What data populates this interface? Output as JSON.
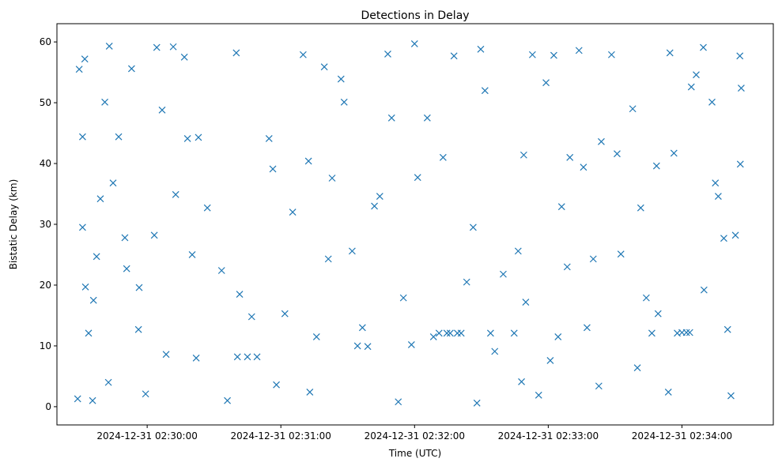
{
  "chart_data": {
    "type": "scatter",
    "title": "Detections in Delay",
    "xlabel": "Time (UTC)",
    "ylabel": "Bistatic Delay (km)",
    "x_units": "seconds after 2024-12-31 02:29:00",
    "xlim": [
      19.5,
      341
    ],
    "ylim": [
      -3,
      63
    ],
    "grid": false,
    "marker": "x",
    "color": "#1f77b4",
    "xticks": [
      {
        "value": 60,
        "label": "2024-12-31 02:30:00"
      },
      {
        "value": 120,
        "label": "2024-12-31 02:31:00"
      },
      {
        "value": 180,
        "label": "2024-12-31 02:32:00"
      },
      {
        "value": 240,
        "label": "2024-12-31 02:33:00"
      },
      {
        "value": 300,
        "label": "2024-12-31 02:34:00"
      }
    ],
    "yticks": [
      {
        "value": 0,
        "label": "0"
      },
      {
        "value": 10,
        "label": "10"
      },
      {
        "value": 20,
        "label": "20"
      },
      {
        "value": 30,
        "label": "30"
      },
      {
        "value": 40,
        "label": "40"
      },
      {
        "value": 50,
        "label": "50"
      },
      {
        "value": 60,
        "label": "60"
      }
    ],
    "points": [
      [
        28.8,
        1.3
      ],
      [
        29.5,
        55.5
      ],
      [
        32,
        57.2
      ],
      [
        31,
        44.4
      ],
      [
        31,
        29.5
      ],
      [
        32.3,
        19.7
      ],
      [
        33.7,
        12.1
      ],
      [
        35.5,
        1.0
      ],
      [
        35.9,
        17.5
      ],
      [
        37.3,
        24.7
      ],
      [
        39,
        34.2
      ],
      [
        41,
        50.1
      ],
      [
        42.6,
        4.0
      ],
      [
        43,
        59.3
      ],
      [
        47.2,
        44.4
      ],
      [
        50,
        27.8
      ],
      [
        53,
        55.6
      ],
      [
        56.4,
        19.6
      ],
      [
        59.3,
        2.1
      ],
      [
        64.3,
        59.1
      ],
      [
        68.5,
        8.6
      ],
      [
        71.7,
        59.2
      ],
      [
        76.7,
        57.5
      ],
      [
        80.2,
        25
      ],
      [
        83,
        44.3
      ],
      [
        82,
        8.0
      ],
      [
        96,
        1.0
      ],
      [
        100,
        58.2
      ],
      [
        101.5,
        18.5
      ],
      [
        105,
        8.2
      ],
      [
        114.7,
        44.1
      ],
      [
        118,
        3.6
      ],
      [
        130,
        57.9
      ],
      [
        133,
        2.4
      ],
      [
        139.5,
        55.9
      ],
      [
        143,
        37.6
      ],
      [
        147,
        53.9
      ],
      [
        154.4,
        10
      ],
      [
        159,
        9.9
      ],
      [
        162,
        33
      ],
      [
        168,
        58
      ],
      [
        172.7,
        0.8
      ],
      [
        178.6,
        10.2
      ],
      [
        180,
        59.7
      ],
      [
        181.4,
        37.7
      ],
      [
        191,
        12.1
      ],
      [
        196,
        12.1
      ],
      [
        200.9,
        12.1
      ],
      [
        197.7,
        57.7
      ],
      [
        208,
        0.6
      ],
      [
        209.7,
        58.8
      ],
      [
        216,
        9.1
      ],
      [
        228,
        4.1
      ],
      [
        229.9,
        17.2
      ],
      [
        232.9,
        57.9
      ],
      [
        235.7,
        1.9
      ],
      [
        242.5,
        57.8
      ],
      [
        246,
        32.9
      ],
      [
        248.5,
        23
      ],
      [
        253.8,
        58.6
      ],
      [
        257.4,
        13
      ],
      [
        262.7,
        3.4
      ],
      [
        268.4,
        57.9
      ],
      [
        272.6,
        25.1
      ],
      [
        280,
        6.4
      ],
      [
        286.5,
        12.1
      ],
      [
        289.3,
        15.3
      ],
      [
        294.6,
        58.2
      ],
      [
        297.9,
        12.1
      ],
      [
        302,
        12.2
      ],
      [
        304.2,
        52.6
      ],
      [
        309.6,
        59.1
      ],
      [
        315,
        36.8
      ],
      [
        318.8,
        27.7
      ],
      [
        322,
        1.8
      ],
      [
        326,
        57.7
      ],
      [
        326.2,
        39.9
      ],
      [
        326.6,
        52.4
      ],
      [
        44.7,
        36.8
      ],
      [
        50.8,
        22.7
      ],
      [
        56.1,
        12.7
      ],
      [
        63.2,
        28.2
      ],
      [
        66.7,
        48.8
      ],
      [
        72.8,
        34.9
      ],
      [
        78.1,
        44.1
      ],
      [
        87,
        32.7
      ],
      [
        93.4,
        22.4
      ],
      [
        100.5,
        8.2
      ],
      [
        106.9,
        14.8
      ],
      [
        109.3,
        8.2
      ],
      [
        116.4,
        39.1
      ],
      [
        121.8,
        15.3
      ],
      [
        125.3,
        32
      ],
      [
        132.4,
        40.4
      ],
      [
        136,
        11.5
      ],
      [
        141.3,
        24.3
      ],
      [
        148.4,
        50.1
      ],
      [
        152,
        25.6
      ],
      [
        156.6,
        13
      ],
      [
        164.4,
        34.6
      ],
      [
        169.7,
        47.5
      ],
      [
        175,
        17.9
      ],
      [
        185.7,
        47.5
      ],
      [
        188.5,
        11.5
      ],
      [
        192.8,
        41
      ],
      [
        194.5,
        12.1
      ],
      [
        199.2,
        12.1
      ],
      [
        203.4,
        20.5
      ],
      [
        206.3,
        29.5
      ],
      [
        211.6,
        52
      ],
      [
        214.1,
        12.1
      ],
      [
        219.8,
        21.8
      ],
      [
        224.7,
        12.1
      ],
      [
        226.5,
        25.6
      ],
      [
        229,
        41.4
      ],
      [
        239,
        53.3
      ],
      [
        240.9,
        7.6
      ],
      [
        244.4,
        11.5
      ],
      [
        249.7,
        41
      ],
      [
        255.8,
        39.4
      ],
      [
        260.2,
        24.3
      ],
      [
        263.8,
        43.6
      ],
      [
        270.9,
        41.6
      ],
      [
        277.9,
        49
      ],
      [
        281.5,
        32.7
      ],
      [
        284,
        17.9
      ],
      [
        288.6,
        39.6
      ],
      [
        293.9,
        2.4
      ],
      [
        296.4,
        41.7
      ],
      [
        300,
        12.2
      ],
      [
        303.5,
        12.2
      ],
      [
        306.4,
        54.6
      ],
      [
        309.9,
        19.2
      ],
      [
        313.5,
        50.1
      ],
      [
        316.3,
        34.6
      ],
      [
        320.5,
        12.7
      ],
      [
        324,
        28.2
      ]
    ]
  }
}
